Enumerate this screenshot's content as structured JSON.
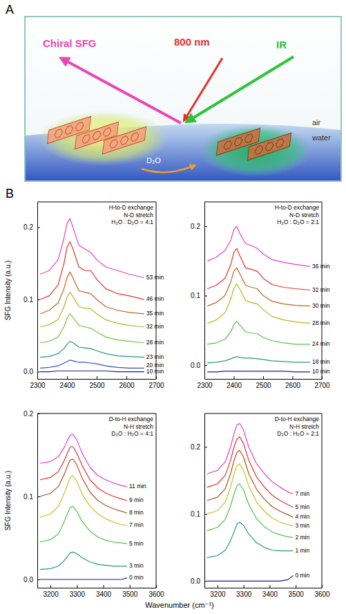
{
  "panel_labels": [
    "A",
    "B"
  ],
  "diagram": {
    "beams": [
      "Chiral SFG",
      "800 nm",
      "IR"
    ],
    "phases": [
      "air",
      "water"
    ],
    "flow": "D₂O"
  },
  "x_label": "Wavenumber (cm⁻¹)",
  "chart_data": [
    {
      "type": "line",
      "annotations": [
        "H-to-D exchange",
        "N-D stretch",
        "H₂O : D₂O = 4:1"
      ],
      "y_label": "SFG Intensity (a.u.)",
      "x": [
        2310,
        2340,
        2370,
        2390,
        2400,
        2410,
        2420,
        2440,
        2460,
        2480,
        2500,
        2530,
        2570,
        2610,
        2660
      ],
      "xlim": [
        2300,
        2700
      ],
      "xticks": [
        2300,
        2400,
        2500,
        2600,
        2700
      ],
      "ylim": [
        -0.01,
        0.235
      ],
      "yticks": [
        {
          "value": 0,
          "label": "0.0"
        },
        {
          "value": 0.1,
          "label": "0.1"
        },
        {
          "value": 0.2,
          "label": "0.2"
        }
      ],
      "series": [
        {
          "name": "53 min",
          "color": "#e23fc9",
          "values": [
            0.135,
            0.14,
            0.155,
            0.185,
            0.205,
            0.212,
            0.2,
            0.175,
            0.17,
            0.165,
            0.155,
            0.145,
            0.14,
            0.135,
            0.13
          ]
        },
        {
          "name": "46 min",
          "color": "#e8302c",
          "values": [
            0.1,
            0.105,
            0.12,
            0.15,
            0.172,
            0.18,
            0.17,
            0.145,
            0.14,
            0.14,
            0.128,
            0.115,
            0.108,
            0.105,
            0.1
          ]
        },
        {
          "name": "35 min",
          "color": "#c8601e",
          "values": [
            0.08,
            0.085,
            0.095,
            0.115,
            0.13,
            0.138,
            0.13,
            0.112,
            0.11,
            0.108,
            0.1,
            0.09,
            0.085,
            0.082,
            0.08
          ]
        },
        {
          "name": "32 min",
          "color": "#b5b420",
          "values": [
            0.062,
            0.065,
            0.072,
            0.09,
            0.103,
            0.11,
            0.104,
            0.09,
            0.088,
            0.087,
            0.08,
            0.072,
            0.067,
            0.064,
            0.062
          ]
        },
        {
          "name": "28 min",
          "color": "#7cc23c",
          "values": [
            0.04,
            0.042,
            0.048,
            0.062,
            0.074,
            0.08,
            0.075,
            0.064,
            0.062,
            0.06,
            0.055,
            0.048,
            0.044,
            0.042,
            0.04
          ]
        },
        {
          "name": "23 min",
          "color": "#239a78",
          "values": [
            0.02,
            0.021,
            0.025,
            0.032,
            0.038,
            0.042,
            0.04,
            0.034,
            0.033,
            0.032,
            0.029,
            0.025,
            0.022,
            0.021,
            0.02
          ]
        },
        {
          "name": "20 min",
          "color": "#2c4fd6",
          "values": [
            0.005,
            0.006,
            0.008,
            0.012,
            0.014,
            0.016,
            0.015,
            0.013,
            0.013,
            0.012,
            0.011,
            0.008,
            0.006,
            0.005,
            0.005
          ]
        },
        {
          "name": "10 min",
          "color": "#1c1c8a",
          "values": [
            0,
            0,
            0.001,
            0.001,
            0.001,
            0.001,
            0.001,
            0.001,
            0.001,
            0.001,
            0.001,
            0.001,
            0,
            0,
            0
          ]
        }
      ]
    },
    {
      "type": "line",
      "annotations": [
        "H-to-D exchange",
        "N-D stretch",
        "H₂O : D₂O = 2:1"
      ],
      "x": [
        2310,
        2340,
        2370,
        2390,
        2400,
        2410,
        2420,
        2440,
        2460,
        2480,
        2500,
        2530,
        2570,
        2610,
        2660
      ],
      "xlim": [
        2300,
        2700
      ],
      "xticks": [
        2300,
        2400,
        2500,
        2600,
        2700
      ],
      "ylim": [
        -0.02,
        0.235
      ],
      "yticks": [
        {
          "value": 0,
          "label": "0.0"
        },
        {
          "value": 0.1,
          "label": "0.1"
        },
        {
          "value": 0.2,
          "label": "0.2"
        }
      ],
      "series": [
        {
          "name": "36 min",
          "color": "#e23fc9",
          "values": [
            0.15,
            0.155,
            0.165,
            0.18,
            0.195,
            0.2,
            0.19,
            0.175,
            0.172,
            0.168,
            0.16,
            0.152,
            0.148,
            0.145,
            0.142
          ]
        },
        {
          "name": "32 min",
          "color": "#e8302c",
          "values": [
            0.11,
            0.115,
            0.125,
            0.145,
            0.162,
            0.168,
            0.158,
            0.14,
            0.138,
            0.135,
            0.125,
            0.116,
            0.112,
            0.11,
            0.108
          ]
        },
        {
          "name": "30 min",
          "color": "#c8601e",
          "values": [
            0.085,
            0.09,
            0.1,
            0.12,
            0.135,
            0.14,
            0.132,
            0.115,
            0.112,
            0.11,
            0.1,
            0.092,
            0.088,
            0.086,
            0.085
          ]
        },
        {
          "name": "28 min",
          "color": "#b5b420",
          "values": [
            0.06,
            0.065,
            0.075,
            0.095,
            0.11,
            0.117,
            0.11,
            0.093,
            0.09,
            0.088,
            0.08,
            0.07,
            0.065,
            0.062,
            0.06
          ]
        },
        {
          "name": "24 min",
          "color": "#4cc24a",
          "values": [
            0.03,
            0.032,
            0.037,
            0.048,
            0.058,
            0.063,
            0.058,
            0.048,
            0.046,
            0.045,
            0.04,
            0.035,
            0.032,
            0.03,
            0.03
          ]
        },
        {
          "name": "18 min",
          "color": "#239a78",
          "values": [
            0.003,
            0.004,
            0.006,
            0.009,
            0.011,
            0.012,
            0.011,
            0.01,
            0.01,
            0.009,
            0.008,
            0.006,
            0.005,
            0.004,
            0.004
          ]
        },
        {
          "name": "10 min",
          "color": "#1c1c8a",
          "values": [
            -0.01,
            -0.01,
            -0.009,
            -0.009,
            -0.009,
            -0.009,
            -0.009,
            -0.009,
            -0.009,
            -0.009,
            -0.009,
            -0.009,
            -0.009,
            -0.01,
            -0.01
          ]
        }
      ]
    },
    {
      "type": "line",
      "annotations": [
        "D-to-H exchange",
        "N-H stretch",
        "D₂O : H₂O = 4:1"
      ],
      "y_label": "SFG Intensity (a.u.)",
      "x": [
        3160,
        3200,
        3230,
        3250,
        3265,
        3275,
        3285,
        3300,
        3320,
        3350,
        3380,
        3410,
        3440,
        3470,
        3490
      ],
      "xlim": [
        3150,
        3600
      ],
      "xticks": [
        3200,
        3300,
        3400,
        3500,
        3600
      ],
      "ylim": [
        -0.01,
        0.2
      ],
      "yticks": [
        {
          "value": 0,
          "label": "0.0"
        },
        {
          "value": 0.1,
          "label": "0.1"
        },
        {
          "value": 0.2,
          "label": "0.2"
        }
      ],
      "series": [
        {
          "name": "11 min",
          "color": "#e23fc9",
          "values": [
            0.14,
            0.142,
            0.148,
            0.158,
            0.168,
            0.174,
            0.175,
            0.168,
            0.152,
            0.135,
            0.125,
            0.12,
            0.116,
            0.113,
            0.112
          ]
        },
        {
          "name": "9 min",
          "color": "#e8302c",
          "values": [
            0.12,
            0.123,
            0.13,
            0.142,
            0.153,
            0.16,
            0.16,
            0.152,
            0.137,
            0.12,
            0.11,
            0.104,
            0.1,
            0.097,
            0.095
          ]
        },
        {
          "name": "8 min",
          "color": "#b0501a",
          "values": [
            0.1,
            0.104,
            0.112,
            0.125,
            0.137,
            0.144,
            0.145,
            0.138,
            0.122,
            0.105,
            0.095,
            0.089,
            0.085,
            0.082,
            0.08
          ]
        },
        {
          "name": "7 min",
          "color": "#c8c020",
          "values": [
            0.075,
            0.079,
            0.088,
            0.102,
            0.115,
            0.123,
            0.125,
            0.118,
            0.103,
            0.088,
            0.079,
            0.073,
            0.069,
            0.066,
            0.065
          ]
        },
        {
          "name": "5 min",
          "color": "#4cc24a",
          "values": [
            0.045,
            0.048,
            0.055,
            0.068,
            0.08,
            0.087,
            0.088,
            0.082,
            0.07,
            0.058,
            0.051,
            0.047,
            0.045,
            0.044,
            0.043
          ]
        },
        {
          "name": "3 min",
          "color": "#239a78",
          "values": [
            0.012,
            0.013,
            0.016,
            0.022,
            0.028,
            0.032,
            0.033,
            0.031,
            0.026,
            0.021,
            0.018,
            0.017,
            0.016,
            0.016,
            0.016
          ]
        },
        {
          "name": "0 min",
          "color": "#1c1c8a",
          "values": [
            0,
            0,
            0,
            0,
            0,
            0,
            0,
            0,
            0,
            0,
            0,
            0,
            0,
            0,
            0.002
          ]
        }
      ]
    },
    {
      "type": "line",
      "annotations": [
        "D-to-H exchange",
        "N-H stretch",
        "D₂O : H₂O = 2:1"
      ],
      "x": [
        3160,
        3200,
        3230,
        3250,
        3265,
        3275,
        3285,
        3300,
        3320,
        3350,
        3380,
        3410,
        3440,
        3470,
        3490
      ],
      "xlim": [
        3150,
        3600
      ],
      "xticks": [
        3200,
        3300,
        3400,
        3500,
        3600
      ],
      "ylim": [
        -0.01,
        0.25
      ],
      "yticks": [
        {
          "value": 0,
          "label": "0.0"
        },
        {
          "value": 0.1,
          "label": "0.1"
        },
        {
          "value": 0.2,
          "label": "0.2"
        }
      ],
      "series": [
        {
          "name": "7 min",
          "color": "#e23fc9",
          "values": [
            0.16,
            0.165,
            0.178,
            0.2,
            0.222,
            0.233,
            0.235,
            0.225,
            0.2,
            0.175,
            0.16,
            0.148,
            0.14,
            0.133,
            0.13
          ]
        },
        {
          "name": "5 min",
          "color": "#e8302c",
          "values": [
            0.14,
            0.145,
            0.158,
            0.18,
            0.202,
            0.212,
            0.215,
            0.205,
            0.18,
            0.155,
            0.14,
            0.128,
            0.12,
            0.114,
            0.11
          ]
        },
        {
          "name": "4 min",
          "color": "#b0501a",
          "values": [
            0.12,
            0.125,
            0.138,
            0.16,
            0.182,
            0.192,
            0.195,
            0.185,
            0.16,
            0.137,
            0.122,
            0.111,
            0.104,
            0.099,
            0.095
          ]
        },
        {
          "name": "3 min",
          "color": "#c8c020",
          "values": [
            0.1,
            0.105,
            0.118,
            0.14,
            0.162,
            0.172,
            0.175,
            0.165,
            0.142,
            0.118,
            0.104,
            0.094,
            0.088,
            0.084,
            0.082
          ]
        },
        {
          "name": "2 min",
          "color": "#4cc24a",
          "values": [
            0.075,
            0.08,
            0.092,
            0.112,
            0.132,
            0.142,
            0.145,
            0.136,
            0.114,
            0.093,
            0.081,
            0.073,
            0.069,
            0.066,
            0.065
          ]
        },
        {
          "name": "1 min",
          "color": "#239a78",
          "values": [
            0.035,
            0.038,
            0.046,
            0.06,
            0.075,
            0.085,
            0.088,
            0.083,
            0.07,
            0.057,
            0.05,
            0.046,
            0.045,
            0.045,
            0.045
          ]
        },
        {
          "name": "0 min",
          "color": "#1c1c8a",
          "values": [
            0,
            0,
            0,
            0,
            0,
            0,
            0,
            0,
            0,
            0,
            0,
            0,
            0,
            0.002,
            0.008
          ]
        }
      ]
    }
  ]
}
